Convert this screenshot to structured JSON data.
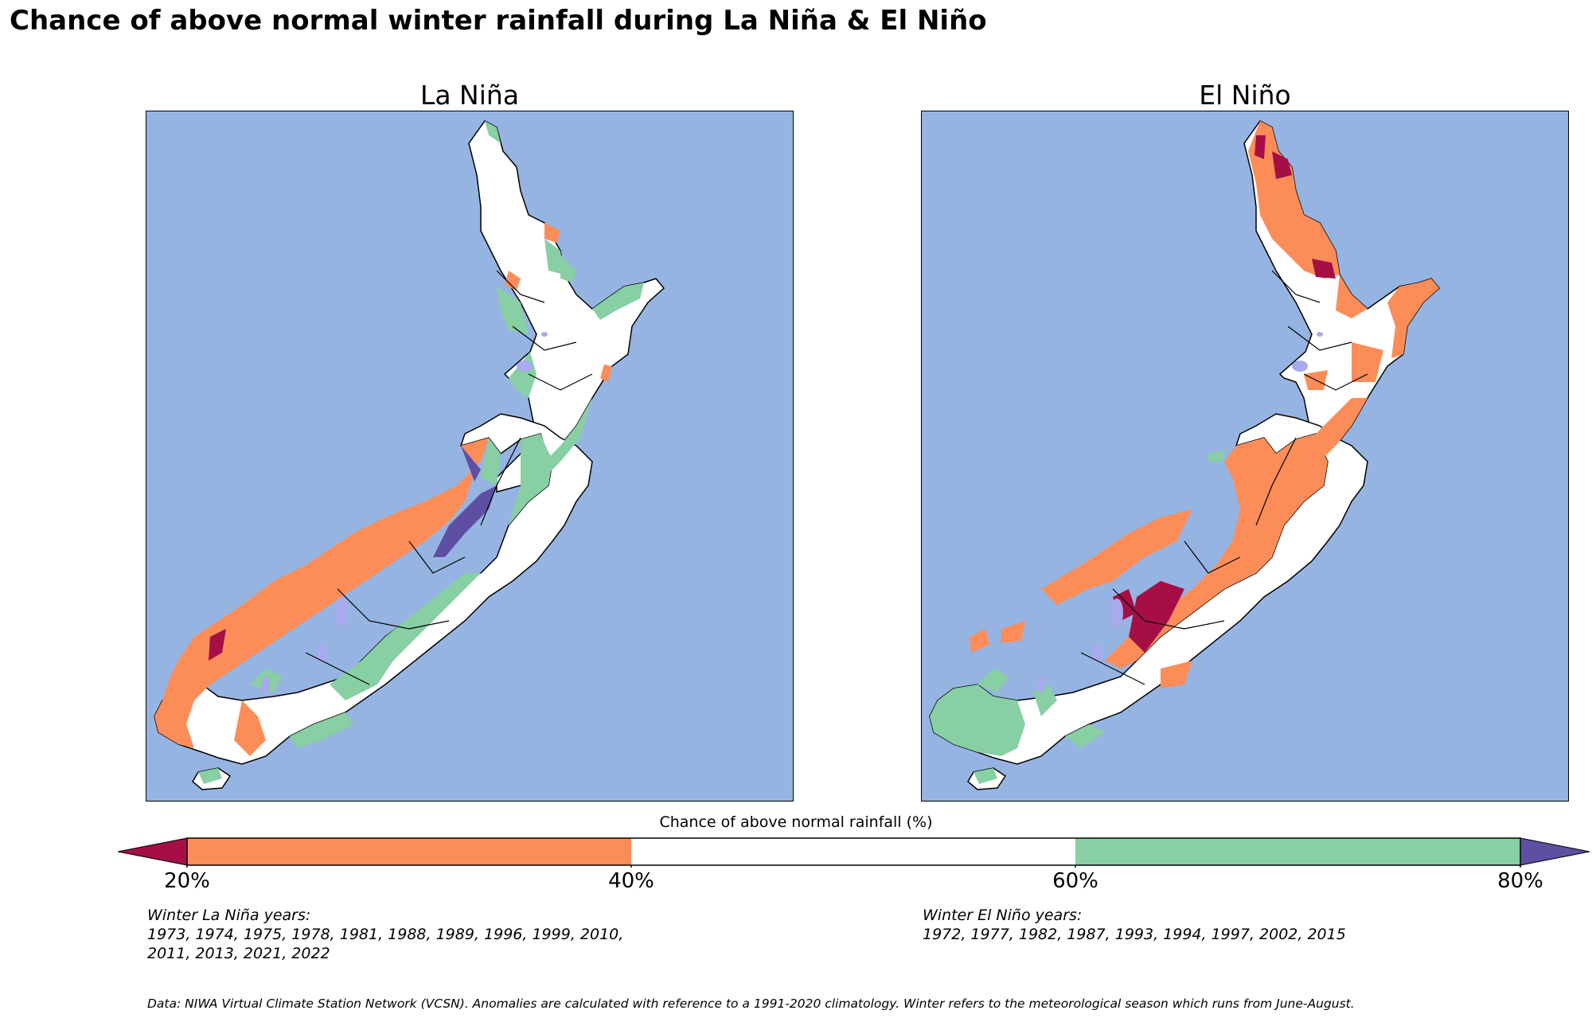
{
  "title": "Chance of above normal winter rainfall during La Niña & El Niño",
  "maps": [
    {
      "title": "La Niña",
      "years_heading": "Winter La Niña years:",
      "years_line1": "1973, 1974, 1975, 1978, 1981, 1988, 1989, 1996, 1999, 2010,",
      "years_line2": "2011, 2013, 2021, 2022"
    },
    {
      "title": "El Niño",
      "years_heading": "Winter El Niño years:",
      "years_line1": "1972, 1977, 1982, 1987, 1993, 1994, 1997, 2002, 2015",
      "years_line2": ""
    }
  ],
  "colorbar": {
    "label": "Chance of above normal rainfall (%)",
    "ticks": [
      "20%",
      "40%",
      "60%",
      "80%"
    ],
    "colors": {
      "below_20": "#a50f45",
      "20_40": "#fc8d59",
      "40_60": "#ffffff",
      "60_80": "#88cfa4",
      "above_80": "#5e4fa2"
    }
  },
  "colors": {
    "ocean": "#96b4e1",
    "land": "#ffffff",
    "lakes": "#a9a9ef"
  },
  "footnote": "Data: NIWA Virtual Climate Station Network (VCSN). Anomalies are calculated with reference to a 1991-2020 climatology. Winter refers to the meteorological season which runs from June-August."
}
